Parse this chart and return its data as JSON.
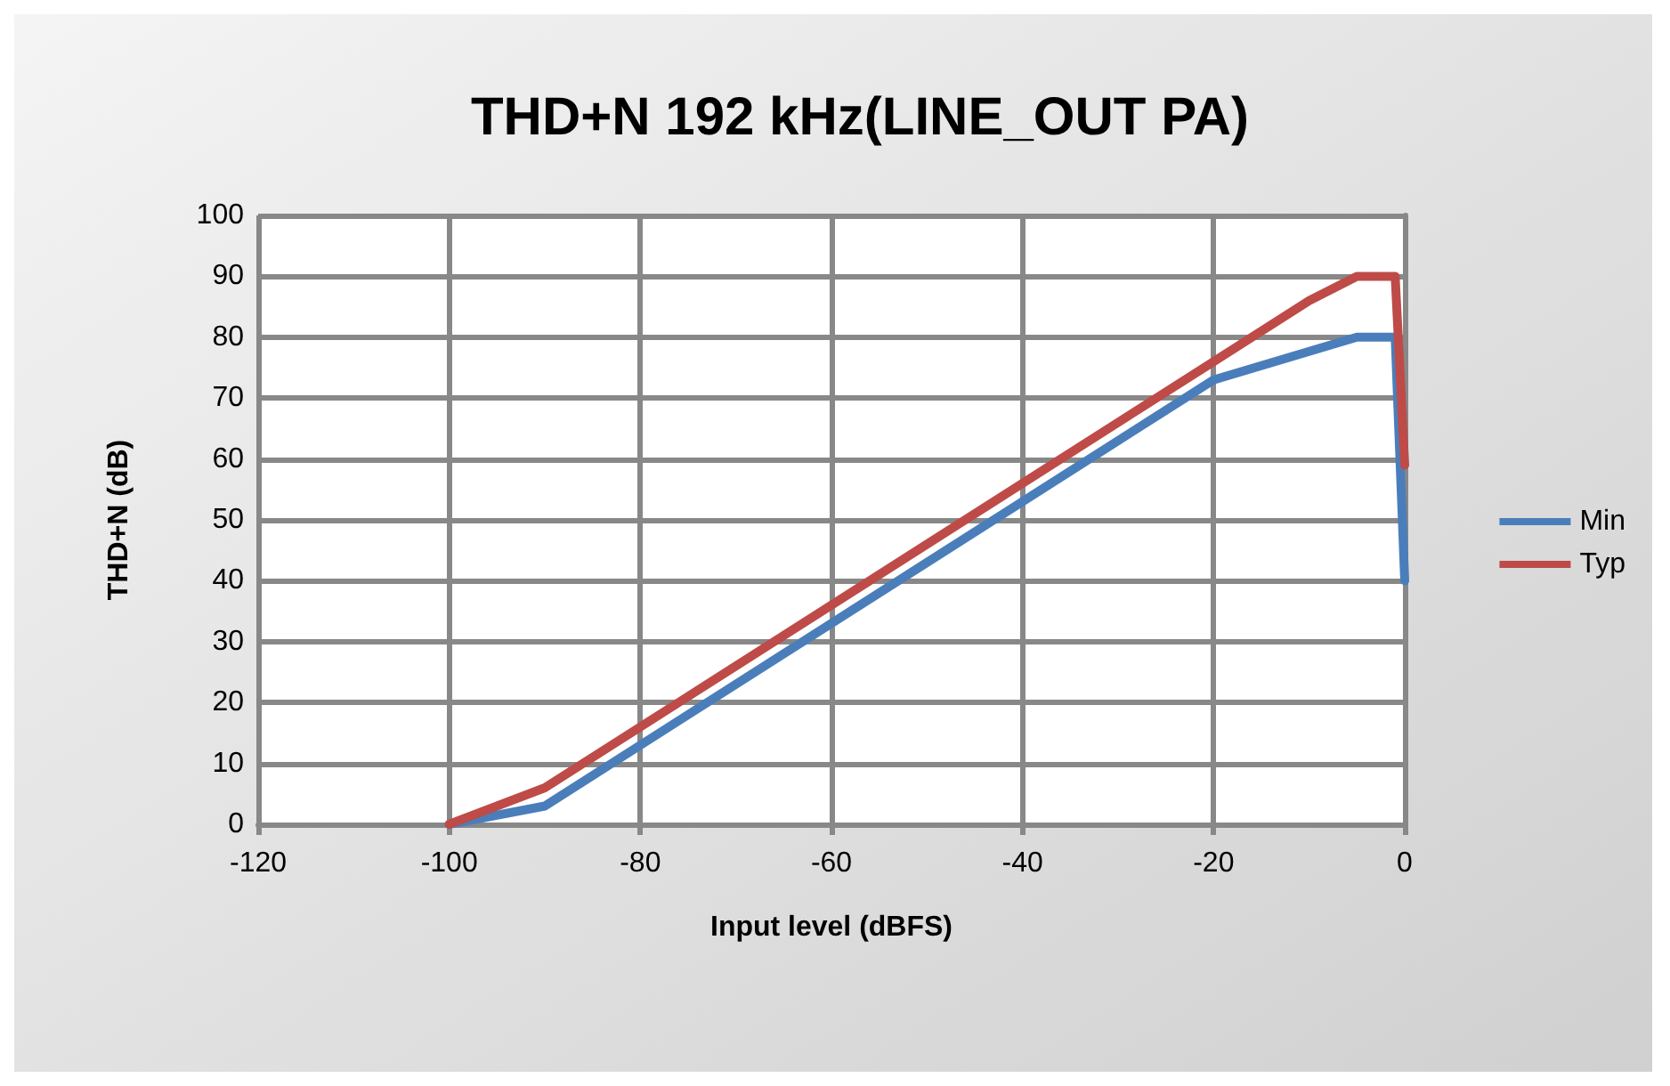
{
  "chart_data": {
    "type": "line",
    "title": "THD+N 192 kHz(LINE_OUT PA)",
    "xlabel": "Input level (dBFS)",
    "ylabel": "THD+N (dB)",
    "xlim": [
      -120,
      0
    ],
    "xticks": [
      -120,
      -100,
      -80,
      -60,
      -40,
      -20,
      0
    ],
    "ylim": [
      0,
      100
    ],
    "yticks": [
      0,
      10,
      20,
      30,
      40,
      50,
      60,
      70,
      80,
      90,
      100
    ],
    "grid": true,
    "legend": "right",
    "marker": "none",
    "line_style": "solid",
    "series": [
      {
        "name": "Min",
        "color": "#4a7ebb",
        "x": [
          -100,
          -90,
          -20,
          -5,
          -1,
          0
        ],
        "values": [
          0,
          3,
          73,
          80,
          80,
          40
        ]
      },
      {
        "name": "Typ",
        "color": "#be4b48",
        "x": [
          -100,
          -90,
          -20,
          -10,
          -5,
          -1,
          0
        ],
        "values": [
          0,
          6,
          76,
          86,
          90,
          90,
          59
        ]
      }
    ]
  }
}
